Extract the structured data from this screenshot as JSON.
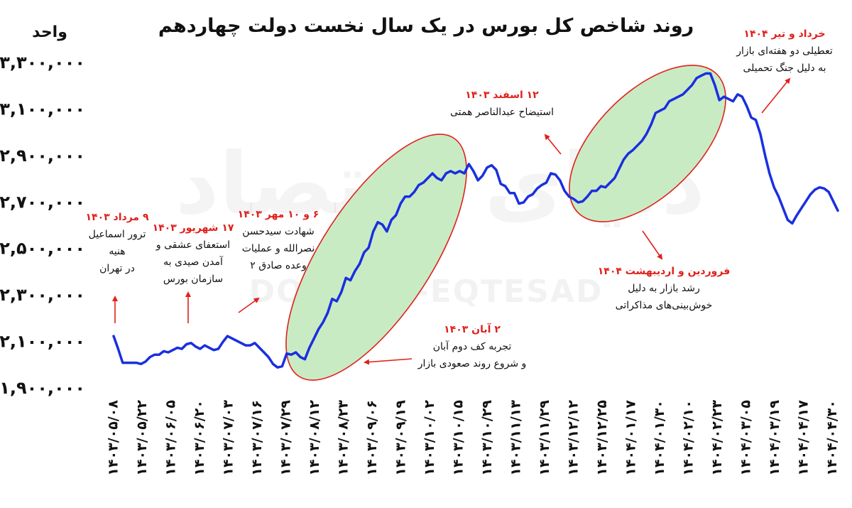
{
  "title": "روند شاخص کل بورس در یک سال نخست دولت چهاردهم",
  "watermark": {
    "fa": "دنیای اقتصاد",
    "en": "DONYA-E-EQTESAD"
  },
  "colors": {
    "line": "#1a2fe0",
    "highlight_fill": "#c9ebc4",
    "highlight_stroke": "#e0201b",
    "annotation_date": "#e0201b",
    "arrow": "#e0201b",
    "text": "#111111"
  },
  "chart_data": {
    "type": "line",
    "ylabel": "واحد",
    "ylim": [
      1900000,
      3300000
    ],
    "yticks": [
      "۳,۳۰۰,۰۰۰",
      "۳,۱۰۰,۰۰۰",
      "۲,۹۰۰,۰۰۰",
      "۲,۷۰۰,۰۰۰",
      "۲,۵۰۰,۰۰۰",
      "۲,۳۰۰,۰۰۰",
      "۲,۱۰۰,۰۰۰",
      "۱,۹۰۰,۰۰۰"
    ],
    "ytick_values": [
      3300000,
      3100000,
      2900000,
      2700000,
      2500000,
      2300000,
      2100000,
      1900000
    ],
    "xticks": [
      "۱۴۰۳/۰۵/۰۸",
      "۱۴۰۳/۰۵/۲۲",
      "۱۴۰۳/۰۶/۰۵",
      "۱۴۰۳/۰۶/۲۰",
      "۱۴۰۳/۰۷/۰۳",
      "۱۴۰۳/۰۷/۱۶",
      "۱۴۰۳/۰۷/۲۹",
      "۱۴۰۳/۰۸/۱۲",
      "۱۴۰۳/۰۸/۲۳",
      "۱۴۰۳/۰۹/۰۶",
      "۱۴۰۳/۰۹/۱۹",
      "۱۴۰۳/۱۰/۰۲",
      "۱۴۰۳/۱۰/۱۵",
      "۱۴۰۳/۱۰/۲۹",
      "۱۴۰۳/۱۱/۱۳",
      "۱۴۰۳/۱۱/۲۹",
      "۱۴۰۳/۱۲/۱۲",
      "۱۴۰۳/۱۲/۲۵",
      "۱۴۰۴/۰۱/۱۷",
      "۱۴۰۴/۰۱/۳۰",
      "۱۴۰۴/۰۲/۱۰",
      "۱۴۰۴/۰۲/۲۳",
      "۱۴۰۴/۰۳/۰۵",
      "۱۴۰۴/۰۳/۱۹",
      "۱۴۰۴/۰۴/۱۷",
      "۱۴۰۴/۰۴/۳۰"
    ],
    "series": [
      {
        "values": [
          2120000,
          2065000,
          2005000,
          2005000,
          2005000,
          2005000,
          2000000,
          2010000,
          2030000,
          2040000,
          2040000,
          2055000,
          2050000,
          2060000,
          2070000,
          2065000,
          2085000,
          2090000,
          2075000,
          2065000,
          2080000,
          2070000,
          2060000,
          2065000,
          2095000,
          2120000,
          2110000,
          2100000,
          2090000,
          2080000,
          2080000,
          2090000,
          2070000,
          2050000,
          2030000,
          2000000,
          1985000,
          1990000,
          2045000,
          2040000,
          2050000,
          2030000,
          2020000,
          2070000,
          2110000,
          2150000,
          2180000,
          2220000,
          2280000,
          2270000,
          2310000,
          2370000,
          2360000,
          2400000,
          2430000,
          2480000,
          2500000,
          2570000,
          2610000,
          2600000,
          2570000,
          2620000,
          2640000,
          2690000,
          2720000,
          2720000,
          2740000,
          2770000,
          2780000,
          2800000,
          2820000,
          2800000,
          2790000,
          2820000,
          2830000,
          2820000,
          2830000,
          2820000,
          2860000,
          2830000,
          2790000,
          2810000,
          2845000,
          2855000,
          2835000,
          2775000,
          2765000,
          2735000,
          2735000,
          2690000,
          2695000,
          2720000,
          2730000,
          2755000,
          2770000,
          2780000,
          2820000,
          2815000,
          2790000,
          2745000,
          2720000,
          2710000,
          2695000,
          2700000,
          2720000,
          2745000,
          2745000,
          2765000,
          2760000,
          2780000,
          2800000,
          2840000,
          2880000,
          2905000,
          2920000,
          2940000,
          2960000,
          2990000,
          3030000,
          3080000,
          3090000,
          3100000,
          3130000,
          3140000,
          3150000,
          3160000,
          3180000,
          3200000,
          3230000,
          3240000,
          3250000,
          3250000,
          3200000,
          3135000,
          3150000,
          3140000,
          3130000,
          3160000,
          3150000,
          3110000,
          3060000,
          3050000,
          2990000,
          2900000,
          2820000,
          2760000,
          2720000,
          2670000,
          2620000,
          2605000,
          2640000,
          2670000,
          2700000,
          2730000,
          2750000,
          2760000,
          2755000,
          2740000,
          2700000,
          2660000
        ]
      }
    ]
  },
  "highlight_ranges": [
    [
      "۱۴۰۳/۰۷/۲۹",
      "۱۴۰۳/۱۰/۲۹"
    ],
    [
      "۱۴۰۳/۱۲/۲۵",
      "۱۴۰۴/۰۲/۲۳"
    ]
  ],
  "annotations": [
    {
      "date": "۹ مرداد ۱۴۰۳",
      "lines": [
        "ترور اسماعیل",
        "هنیه",
        "در تهران"
      ]
    },
    {
      "date": "۱۷ شهریور ۱۴۰۳",
      "lines": [
        "استعفای عشقی و",
        "آمدن صیدی به",
        "سازمان بورس"
      ]
    },
    {
      "date": "۶ و ۱۰ مهر ۱۴۰۳",
      "lines": [
        "شهادت سیدحسن",
        "نصرالله و عملیات",
        "وعده صادق ۲"
      ]
    },
    {
      "date": "۲ آبان ۱۴۰۳",
      "lines": [
        "تجربه کف دوم آبان",
        "و شروع روند صعودی بازار"
      ]
    },
    {
      "date": "۱۲ اسفند ۱۴۰۳",
      "lines": [
        "استیضاح عبدالناصر همتی"
      ]
    },
    {
      "date": "فروردین و اردیبهشت ۱۴۰۴",
      "lines": [
        "رشد بازار به دلیل",
        "خوش‌بینی‌های مذاکراتی"
      ]
    },
    {
      "date": "خرداد و تیر ۱۴۰۴",
      "lines": [
        "تعطیلی دو هفته‌ای بازار",
        "به دلیل جنگ تحمیلی"
      ]
    }
  ]
}
